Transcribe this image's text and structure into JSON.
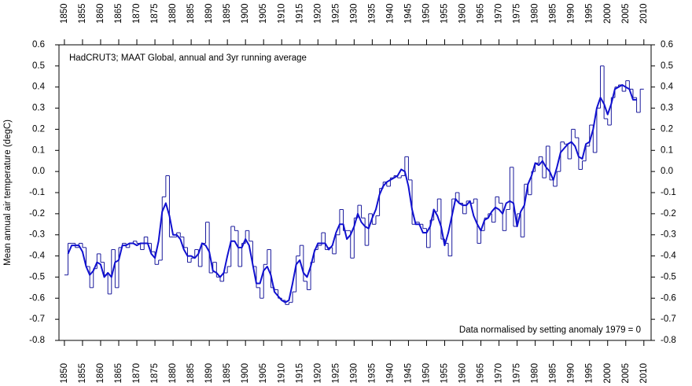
{
  "chart_data": {
    "type": "line",
    "title": "HadCRUT3; MAAT Global, annual and 3yr running average",
    "annotation": "Data normalised by setting anomaly 1979 = 0",
    "y_label": "Mean annual air temperature (degC)",
    "x": [
      1850,
      1851,
      1852,
      1853,
      1854,
      1855,
      1856,
      1857,
      1858,
      1859,
      1860,
      1861,
      1862,
      1863,
      1864,
      1865,
      1866,
      1867,
      1868,
      1869,
      1870,
      1871,
      1872,
      1873,
      1874,
      1875,
      1876,
      1877,
      1878,
      1879,
      1880,
      1881,
      1882,
      1883,
      1884,
      1885,
      1886,
      1887,
      1888,
      1889,
      1890,
      1891,
      1892,
      1893,
      1894,
      1895,
      1896,
      1897,
      1898,
      1899,
      1900,
      1901,
      1902,
      1903,
      1904,
      1905,
      1906,
      1907,
      1908,
      1909,
      1910,
      1911,
      1912,
      1913,
      1914,
      1915,
      1916,
      1917,
      1918,
      1919,
      1920,
      1921,
      1922,
      1923,
      1924,
      1925,
      1926,
      1927,
      1928,
      1929,
      1930,
      1931,
      1932,
      1933,
      1934,
      1935,
      1936,
      1937,
      1938,
      1939,
      1940,
      1941,
      1942,
      1943,
      1944,
      1945,
      1946,
      1947,
      1948,
      1949,
      1950,
      1951,
      1952,
      1953,
      1954,
      1955,
      1956,
      1957,
      1958,
      1959,
      1960,
      1961,
      1962,
      1963,
      1964,
      1965,
      1966,
      1967,
      1968,
      1969,
      1970,
      1971,
      1972,
      1973,
      1974,
      1975,
      1976,
      1977,
      1978,
      1979,
      1980,
      1981,
      1982,
      1983,
      1984,
      1985,
      1986,
      1987,
      1988,
      1989,
      1990,
      1991,
      1992,
      1993,
      1994,
      1995,
      1996,
      1997,
      1998,
      1999,
      2000,
      2001,
      2002,
      2003,
      2004,
      2005,
      2006,
      2007,
      2008,
      2009
    ],
    "series": [
      {
        "style": "step",
        "color": "#1a1a9c",
        "values": [
          -0.49,
          -0.34,
          -0.34,
          -0.36,
          -0.34,
          -0.36,
          -0.45,
          -0.55,
          -0.46,
          -0.39,
          -0.43,
          -0.49,
          -0.58,
          -0.37,
          -0.55,
          -0.36,
          -0.34,
          -0.36,
          -0.34,
          -0.33,
          -0.34,
          -0.37,
          -0.31,
          -0.34,
          -0.38,
          -0.44,
          -0.42,
          -0.12,
          -0.02,
          -0.31,
          -0.31,
          -0.29,
          -0.31,
          -0.36,
          -0.43,
          -0.41,
          -0.37,
          -0.45,
          -0.34,
          -0.24,
          -0.48,
          -0.43,
          -0.5,
          -0.52,
          -0.48,
          -0.45,
          -0.26,
          -0.28,
          -0.45,
          -0.34,
          -0.28,
          -0.33,
          -0.45,
          -0.55,
          -0.6,
          -0.44,
          -0.37,
          -0.55,
          -0.56,
          -0.6,
          -0.61,
          -0.63,
          -0.62,
          -0.57,
          -0.4,
          -0.35,
          -0.52,
          -0.56,
          -0.43,
          -0.37,
          -0.35,
          -0.29,
          -0.37,
          -0.36,
          -0.39,
          -0.3,
          -0.18,
          -0.28,
          -0.28,
          -0.41,
          -0.22,
          -0.16,
          -0.22,
          -0.35,
          -0.2,
          -0.25,
          -0.21,
          -0.08,
          -0.05,
          -0.07,
          -0.03,
          -0.02,
          -0.03,
          -0.02,
          0.07,
          -0.04,
          -0.25,
          -0.24,
          -0.25,
          -0.27,
          -0.36,
          -0.23,
          -0.19,
          -0.13,
          -0.32,
          -0.34,
          -0.4,
          -0.13,
          -0.1,
          -0.15,
          -0.2,
          -0.14,
          -0.15,
          -0.13,
          -0.34,
          -0.28,
          -0.22,
          -0.2,
          -0.24,
          -0.12,
          -0.15,
          -0.28,
          -0.18,
          0.02,
          -0.26,
          -0.2,
          -0.31,
          -0.06,
          -0.11,
          0.0,
          0.04,
          0.07,
          -0.03,
          0.12,
          -0.04,
          -0.07,
          0.0,
          0.14,
          0.13,
          0.06,
          0.2,
          0.16,
          0.01,
          0.05,
          0.12,
          0.22,
          0.09,
          0.3,
          0.5,
          0.25,
          0.22,
          0.35,
          0.4,
          0.41,
          0.38,
          0.43,
          0.39,
          0.35,
          0.28,
          0.39
        ]
      },
      {
        "style": "line",
        "color": "#1010d0",
        "values": [
          null,
          -0.39,
          -0.35,
          -0.35,
          -0.35,
          -0.38,
          -0.45,
          -0.49,
          -0.47,
          -0.43,
          -0.44,
          -0.5,
          -0.48,
          -0.5,
          -0.43,
          -0.42,
          -0.35,
          -0.35,
          -0.34,
          -0.34,
          -0.35,
          -0.34,
          -0.34,
          -0.34,
          -0.39,
          -0.41,
          -0.33,
          -0.19,
          -0.15,
          -0.21,
          -0.3,
          -0.3,
          -0.32,
          -0.37,
          -0.4,
          -0.4,
          -0.41,
          -0.39,
          -0.34,
          -0.35,
          -0.38,
          -0.47,
          -0.48,
          -0.5,
          -0.48,
          -0.4,
          -0.33,
          -0.33,
          -0.36,
          -0.36,
          -0.32,
          -0.35,
          -0.44,
          -0.53,
          -0.53,
          -0.47,
          -0.45,
          -0.49,
          -0.57,
          -0.59,
          -0.61,
          -0.62,
          -0.61,
          -0.53,
          -0.44,
          -0.42,
          -0.48,
          -0.5,
          -0.45,
          -0.38,
          -0.34,
          -0.34,
          -0.34,
          -0.37,
          -0.35,
          -0.29,
          -0.25,
          -0.25,
          -0.32,
          -0.3,
          -0.26,
          -0.2,
          -0.24,
          -0.26,
          -0.27,
          -0.22,
          -0.18,
          -0.11,
          -0.07,
          -0.05,
          -0.04,
          -0.03,
          -0.02,
          0.01,
          0.0,
          -0.07,
          -0.18,
          -0.25,
          -0.25,
          -0.29,
          -0.29,
          -0.26,
          -0.18,
          -0.21,
          -0.26,
          -0.35,
          -0.29,
          -0.21,
          -0.13,
          -0.15,
          -0.16,
          -0.16,
          -0.14,
          -0.21,
          -0.25,
          -0.28,
          -0.23,
          -0.22,
          -0.19,
          -0.17,
          -0.18,
          -0.2,
          -0.15,
          -0.14,
          -0.15,
          -0.26,
          -0.19,
          -0.16,
          -0.06,
          -0.02,
          0.04,
          0.03,
          0.05,
          0.02,
          0.0,
          -0.04,
          0.02,
          0.09,
          0.11,
          0.13,
          0.14,
          0.12,
          0.07,
          0.06,
          0.13,
          0.14,
          0.2,
          0.3,
          0.35,
          0.32,
          0.27,
          0.32,
          0.39,
          0.4,
          0.41,
          0.4,
          0.39,
          0.34,
          0.34,
          null
        ]
      }
    ],
    "xlim": [
      1848.5,
      2012
    ],
    "xticks": [
      1850,
      1855,
      1860,
      1865,
      1870,
      1875,
      1880,
      1885,
      1890,
      1895,
      1900,
      1905,
      1910,
      1915,
      1920,
      1925,
      1930,
      1935,
      1940,
      1945,
      1950,
      1955,
      1960,
      1965,
      1970,
      1975,
      1980,
      1985,
      1990,
      1995,
      2000,
      2005,
      2010
    ],
    "ylim": [
      -0.8,
      0.6
    ],
    "yticks": [
      0.6,
      0.5,
      0.4,
      0.3,
      0.2,
      0.1,
      {
        "value": 0,
        "label": "0.0"
      },
      -0.1,
      -0.2,
      -0.3,
      -0.4,
      -0.5,
      -0.6,
      -0.7,
      -0.8
    ],
    "mirror_axes": true
  }
}
